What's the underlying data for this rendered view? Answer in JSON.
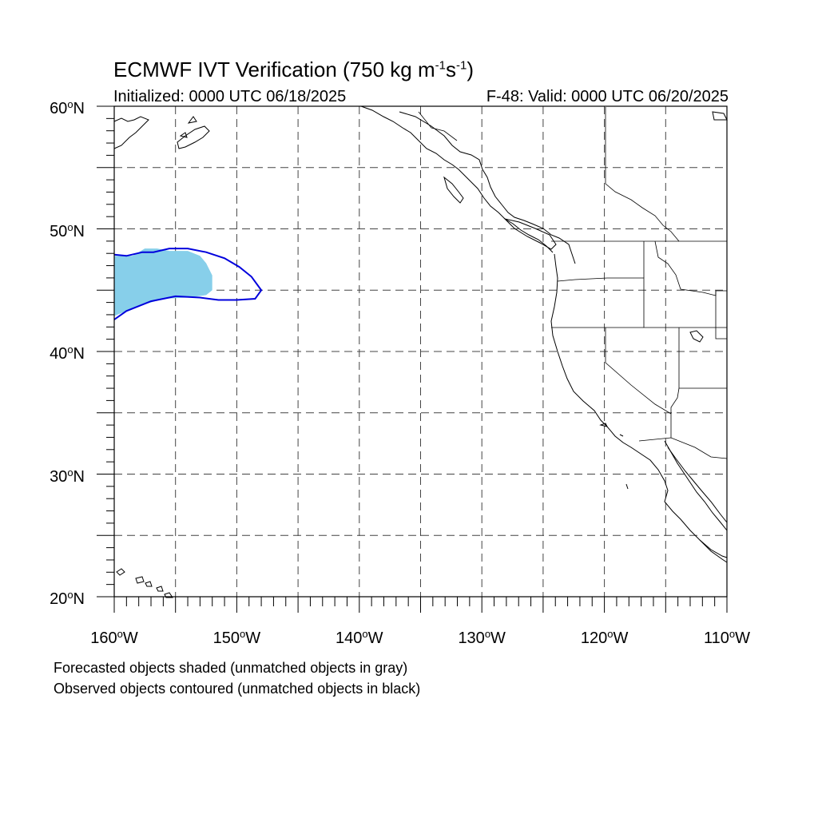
{
  "title": {
    "prefix": "ECMWF IVT Verification (750 kg m",
    "exp1": "-1",
    "mid": "s",
    "exp2": "-1",
    "suffix": ")"
  },
  "initialized": "Initialized: 0000 UTC 06/18/2025",
  "valid": "F-48: Valid: 0000 UTC 06/20/2025",
  "axes": {
    "lon_range": [
      -160,
      -110
    ],
    "lat_range": [
      20,
      60
    ],
    "lat_labels": [
      {
        "value": 60,
        "num": "60",
        "suffix": "N"
      },
      {
        "value": 50,
        "num": "50",
        "suffix": "N"
      },
      {
        "value": 40,
        "num": "40",
        "suffix": "N"
      },
      {
        "value": 30,
        "num": "30",
        "suffix": "N"
      },
      {
        "value": 20,
        "num": "20",
        "suffix": "N"
      }
    ],
    "lon_labels": [
      {
        "value": -160,
        "num": "160",
        "suffix": "W"
      },
      {
        "value": -150,
        "num": "150",
        "suffix": "W"
      },
      {
        "value": -140,
        "num": "140",
        "suffix": "W"
      },
      {
        "value": -130,
        "num": "130",
        "suffix": "W"
      },
      {
        "value": -120,
        "num": "120",
        "suffix": "W"
      },
      {
        "value": -110,
        "num": "110",
        "suffix": "W"
      }
    ],
    "degree_symbol": "o",
    "grid_lon": [
      -155,
      -150,
      -145,
      -140,
      -135,
      -130,
      -125,
      -120,
      -115
    ],
    "grid_lat": [
      25,
      30,
      35,
      40,
      45,
      50,
      55
    ],
    "grid_style": "dashed"
  },
  "colors": {
    "forecast_fill": "#87cfea",
    "observed_contour": "#0000dd",
    "coast": "#000000",
    "grid": "#444444"
  },
  "notes": {
    "forecast": "Forecasted objects shaded (unmatched objects in gray)",
    "observed": "Observed objects contoured (unmatched objects in black)"
  },
  "forecast_object": {
    "polygon_lonlat": [
      [
        -160,
        47.8
      ],
      [
        -158.5,
        47.8
      ],
      [
        -157.5,
        48.4
      ],
      [
        -156.5,
        48.4
      ],
      [
        -155.5,
        48.2
      ],
      [
        -154,
        48.2
      ],
      [
        -153,
        47.8
      ],
      [
        -152.5,
        47.2
      ],
      [
        -152,
        46.2
      ],
      [
        -152,
        45
      ],
      [
        -152.5,
        44.6
      ],
      [
        -154,
        44.4
      ],
      [
        -156,
        44.3
      ],
      [
        -158,
        43.7
      ],
      [
        -160,
        42.9
      ]
    ]
  },
  "observed_object": {
    "polygon_lonlat": [
      [
        -160,
        47.9
      ],
      [
        -159,
        47.8
      ],
      [
        -157.7,
        48.1
      ],
      [
        -156.8,
        48.1
      ],
      [
        -155.5,
        48.4
      ],
      [
        -154,
        48.4
      ],
      [
        -152.5,
        48.1
      ],
      [
        -151,
        47.6
      ],
      [
        -149.8,
        46.9
      ],
      [
        -148.8,
        46.1
      ],
      [
        -148,
        45
      ],
      [
        -148.5,
        44.3
      ],
      [
        -150,
        44.2
      ],
      [
        -151.5,
        44.2
      ],
      [
        -153,
        44.4
      ],
      [
        -155,
        44.5
      ],
      [
        -157,
        44.1
      ],
      [
        -159,
        43.3
      ],
      [
        -160,
        42.6
      ]
    ]
  }
}
